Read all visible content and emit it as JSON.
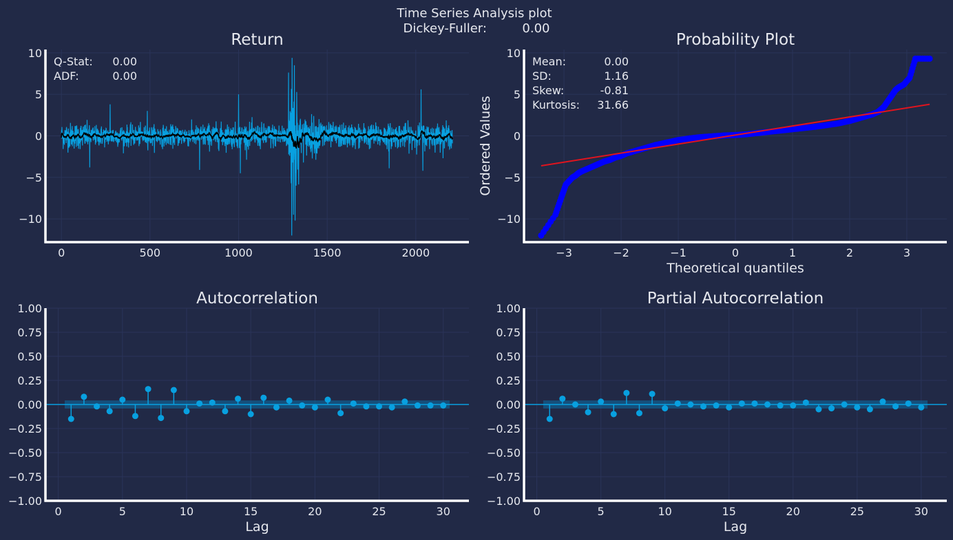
{
  "figure": {
    "title": "Time Series Analysis plot",
    "subtitle": "Dickey-Fuller:         0.00"
  },
  "colors": {
    "background": "#212946",
    "grid": "#2A3459",
    "axis": "#FFFFFF",
    "text": "#E6E8EE",
    "series": "#08A0E0",
    "rolling": "#000000",
    "qq_points": "#0000FF",
    "qq_line": "#E0141E",
    "conf_band": "#0C6FA8"
  },
  "chart_data": [
    {
      "type": "line",
      "title": "Return",
      "xlabel": "",
      "ylabel": "",
      "xlim": [
        -90,
        2300
      ],
      "ylim": [
        -12.8,
        10.4
      ],
      "xticks": [
        0,
        500,
        1000,
        1500,
        2000
      ],
      "yticks": [
        -10,
        -5,
        0,
        5,
        10
      ],
      "ytick_labels": [
        "−10",
        "−5",
        "0",
        "5",
        "10"
      ],
      "grid": true,
      "n_points": 2208,
      "stats": [
        {
          "label": "Q-Stat:",
          "value": "0.00"
        },
        {
          "label": "ADF:",
          "value": "0.00"
        }
      ],
      "volatility_regimes": [
        {
          "x": [
            0,
            150
          ],
          "amp": 1.4
        },
        {
          "x": [
            150,
            780
          ],
          "amp": 1.1
        },
        {
          "x": [
            780,
            1280
          ],
          "amp": 1.3
        },
        {
          "x": [
            1280,
            1340
          ],
          "amp": 6.5
        },
        {
          "x": [
            1340,
            1500
          ],
          "amp": 2.0
        },
        {
          "x": [
            1500,
            2208
          ],
          "amp": 1.3
        }
      ],
      "spikes": [
        {
          "x": 160,
          "y": -3.8
        },
        {
          "x": 275,
          "y": 3.8
        },
        {
          "x": 485,
          "y": 3.0
        },
        {
          "x": 780,
          "y": -4.1
        },
        {
          "x": 1000,
          "y": 5.0
        },
        {
          "x": 1010,
          "y": -4.5
        },
        {
          "x": 1300,
          "y": -12.0
        },
        {
          "x": 1302,
          "y": 9.4
        },
        {
          "x": 1310,
          "y": -9.5
        },
        {
          "x": 1315,
          "y": 8.5
        },
        {
          "x": 1325,
          "y": -6.0
        },
        {
          "x": 1850,
          "y": -3.9
        },
        {
          "x": 2030,
          "y": 5.6
        },
        {
          "x": 2040,
          "y": -4.2
        }
      ]
    },
    {
      "type": "scatter",
      "title": "Probability Plot",
      "xlabel": "Theoretical quantiles",
      "ylabel": "Ordered Values",
      "xlim": [
        -3.7,
        3.7
      ],
      "ylim": [
        -12.8,
        10.4
      ],
      "xticks": [
        -3,
        -2,
        -1,
        0,
        1,
        2,
        3
      ],
      "xtick_labels": [
        "−3",
        "−2",
        "−1",
        "0",
        "1",
        "2",
        "3"
      ],
      "yticks": [
        -10,
        -5,
        0,
        5,
        10
      ],
      "ytick_labels": [
        "−10",
        "−5",
        "0",
        "5",
        "10"
      ],
      "grid": true,
      "fit_line": {
        "x": [
          -3.4,
          3.4
        ],
        "y": [
          -3.6,
          3.8
        ]
      },
      "points_x": [
        -3.4,
        -3.15,
        -3.05,
        -2.97,
        -2.92,
        -2.85,
        -2.8,
        -2.75,
        -2.7,
        -2.6,
        -2.5,
        -2.4,
        -2.3,
        -2.2,
        -2.1,
        -2.0,
        -1.9,
        -1.8,
        -1.6,
        -1.4,
        -1.2,
        -1.0,
        -0.8,
        -0.6,
        -0.4,
        -0.2,
        0.0,
        0.2,
        0.4,
        0.6,
        0.8,
        1.0,
        1.2,
        1.4,
        1.6,
        1.8,
        2.0,
        2.1,
        2.2,
        2.3,
        2.4,
        2.5,
        2.55,
        2.6,
        2.65,
        2.7,
        2.75,
        2.8,
        2.85,
        2.9,
        2.95,
        3.05,
        3.15,
        3.4
      ],
      "points_y": [
        -12.0,
        -9.5,
        -7.5,
        -5.9,
        -5.5,
        -5.0,
        -4.8,
        -4.5,
        -4.3,
        -4.0,
        -3.7,
        -3.4,
        -3.1,
        -2.9,
        -2.6,
        -2.4,
        -2.1,
        -1.9,
        -1.5,
        -1.1,
        -0.8,
        -0.5,
        -0.3,
        -0.15,
        -0.05,
        0.05,
        0.1,
        0.2,
        0.35,
        0.5,
        0.65,
        0.8,
        0.95,
        1.1,
        1.3,
        1.5,
        1.8,
        2.0,
        2.2,
        2.4,
        2.6,
        2.9,
        3.2,
        3.5,
        4.0,
        4.5,
        5.0,
        5.5,
        5.8,
        6.0,
        6.2,
        7.0,
        9.3,
        9.3
      ],
      "stats": [
        {
          "label": "Mean:",
          "value": "0.00"
        },
        {
          "label": "SD:",
          "value": "1.16"
        },
        {
          "label": "Skew:",
          "value": "-0.81"
        },
        {
          "label": "Kurtosis:",
          "value": "31.66"
        }
      ]
    },
    {
      "type": "stem",
      "title": "Autocorrelation",
      "xlabel": "Lag",
      "ylabel": "",
      "xlim": [
        -1.0,
        32.0
      ],
      "ylim": [
        -1.0,
        1.0
      ],
      "xticks": [
        0,
        5,
        10,
        15,
        20,
        25,
        30
      ],
      "yticks": [
        -1.0,
        -0.75,
        -0.5,
        -0.25,
        0.0,
        0.25,
        0.5,
        0.75,
        1.0
      ],
      "ytick_labels": [
        "−1.00",
        "−0.75",
        "−0.50",
        "−0.25",
        "0.00",
        "0.25",
        "0.50",
        "0.75",
        "1.00"
      ],
      "grid": true,
      "confidence_band": [
        -0.042,
        0.042
      ],
      "lags": [
        1,
        2,
        3,
        4,
        5,
        6,
        7,
        8,
        9,
        10,
        11,
        12,
        13,
        14,
        15,
        16,
        17,
        18,
        19,
        20,
        21,
        22,
        23,
        24,
        25,
        26,
        27,
        28,
        29,
        30
      ],
      "values": [
        -0.15,
        0.08,
        -0.02,
        -0.07,
        0.05,
        -0.12,
        0.16,
        -0.14,
        0.15,
        -0.07,
        0.01,
        0.02,
        -0.07,
        0.06,
        -0.1,
        0.07,
        -0.03,
        0.04,
        -0.01,
        -0.03,
        0.05,
        -0.09,
        0.01,
        -0.02,
        -0.02,
        -0.03,
        0.03,
        -0.01,
        -0.01,
        -0.01
      ]
    },
    {
      "type": "stem",
      "title": "Partial Autocorrelation",
      "xlabel": "Lag",
      "ylabel": "",
      "xlim": [
        -1.0,
        32.0
      ],
      "ylim": [
        -1.0,
        1.0
      ],
      "xticks": [
        0,
        5,
        10,
        15,
        20,
        25,
        30
      ],
      "yticks": [
        -1.0,
        -0.75,
        -0.5,
        -0.25,
        0.0,
        0.25,
        0.5,
        0.75,
        1.0
      ],
      "ytick_labels": [
        "−1.00",
        "−0.75",
        "−0.50",
        "−0.25",
        "0.00",
        "0.25",
        "0.50",
        "0.75",
        "1.00"
      ],
      "grid": true,
      "confidence_band": [
        -0.042,
        0.042
      ],
      "lags": [
        1,
        2,
        3,
        4,
        5,
        6,
        7,
        8,
        9,
        10,
        11,
        12,
        13,
        14,
        15,
        16,
        17,
        18,
        19,
        20,
        21,
        22,
        23,
        24,
        25,
        26,
        27,
        28,
        29,
        30
      ],
      "values": [
        -0.15,
        0.06,
        0.0,
        -0.08,
        0.03,
        -0.1,
        0.12,
        -0.09,
        0.11,
        -0.04,
        0.01,
        0.0,
        -0.02,
        -0.01,
        -0.03,
        0.01,
        0.01,
        0.0,
        -0.01,
        -0.01,
        0.02,
        -0.05,
        -0.04,
        0.0,
        -0.03,
        -0.05,
        0.03,
        -0.02,
        0.01,
        -0.03
      ]
    }
  ]
}
